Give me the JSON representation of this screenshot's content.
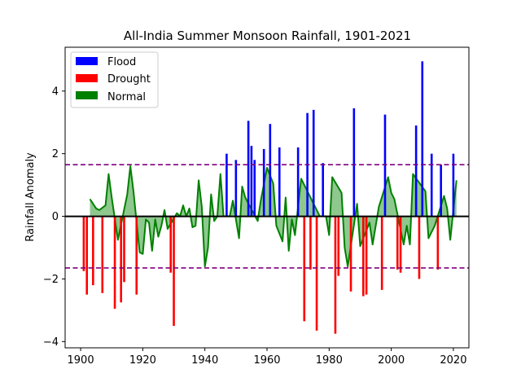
{
  "chart_data": {
    "type": "bar",
    "title": "All-India Summer Monsoon Rainfall, 1901-2021",
    "xlabel": "",
    "ylabel": "Rainfall Anomaly",
    "xlim": [
      1895,
      2025
    ],
    "ylim": [
      -4.2,
      5.4
    ],
    "xticks": [
      1900,
      1920,
      1940,
      1960,
      1980,
      2000,
      2020
    ],
    "yticks": [
      -4,
      -2,
      0,
      2,
      4
    ],
    "thresholds": [
      1.65,
      -1.65
    ],
    "legend_position": "upper-left",
    "colors": {
      "flood": "#0000ff",
      "drought": "#ff0000",
      "normal": "#008000",
      "normal_fill": "#82c282",
      "threshold": "#800080",
      "zero": "#000000"
    },
    "series": [
      {
        "name": "Flood",
        "type": "bar",
        "points": [
          [
            1947,
            2.0
          ],
          [
            1950,
            1.8
          ],
          [
            1954,
            3.05
          ],
          [
            1955,
            2.25
          ],
          [
            1956,
            1.8
          ],
          [
            1959,
            2.15
          ],
          [
            1961,
            2.95
          ],
          [
            1964,
            2.2
          ],
          [
            1970,
            2.2
          ],
          [
            1973,
            3.3
          ],
          [
            1975,
            3.4
          ],
          [
            1978,
            1.7
          ],
          [
            1988,
            3.45
          ],
          [
            1998,
            3.25
          ],
          [
            2008,
            2.9
          ],
          [
            2010,
            4.95
          ],
          [
            2013,
            2.0
          ],
          [
            2016,
            1.65
          ],
          [
            2020,
            2.0
          ]
        ]
      },
      {
        "name": "Drought",
        "type": "bar",
        "points": [
          [
            1901,
            -1.75
          ],
          [
            1902,
            -2.5
          ],
          [
            1904,
            -2.2
          ],
          [
            1907,
            -2.45
          ],
          [
            1911,
            -2.95
          ],
          [
            1913,
            -2.75
          ],
          [
            1914,
            -2.1
          ],
          [
            1918,
            -2.5
          ],
          [
            1929,
            -1.8
          ],
          [
            1930,
            -3.5
          ],
          [
            1972,
            -3.35
          ],
          [
            1974,
            -1.7
          ],
          [
            1976,
            -3.65
          ],
          [
            1982,
            -3.75
          ],
          [
            1983,
            -1.9
          ],
          [
            1987,
            -2.4
          ],
          [
            1991,
            -2.55
          ],
          [
            1992,
            -2.5
          ],
          [
            1997,
            -2.35
          ],
          [
            2002,
            -1.7
          ],
          [
            2003,
            -1.8
          ],
          [
            2009,
            -2.0
          ],
          [
            2015,
            -1.7
          ]
        ]
      },
      {
        "name": "Normal",
        "type": "area",
        "points": [
          [
            1903,
            0.55
          ],
          [
            1905,
            0.25
          ],
          [
            1906,
            0.2
          ],
          [
            1908,
            0.35
          ],
          [
            1909,
            1.35
          ],
          [
            1910,
            0.6
          ],
          [
            1912,
            -0.75
          ],
          [
            1915,
            0.7
          ],
          [
            1916,
            1.6
          ],
          [
            1917,
            0.8
          ],
          [
            1919,
            -1.15
          ],
          [
            1920,
            -1.2
          ],
          [
            1921,
            -0.1
          ],
          [
            1922,
            -0.2
          ],
          [
            1923,
            -1.1
          ],
          [
            1924,
            -0.1
          ],
          [
            1925,
            -0.65
          ],
          [
            1926,
            -0.3
          ],
          [
            1927,
            0.2
          ],
          [
            1928,
            -0.4
          ],
          [
            1931,
            0.1
          ],
          [
            1932,
            0.0
          ],
          [
            1933,
            0.35
          ],
          [
            1934,
            0.0
          ],
          [
            1935,
            0.25
          ],
          [
            1936,
            -0.35
          ],
          [
            1937,
            -0.3
          ],
          [
            1938,
            1.15
          ],
          [
            1939,
            0.3
          ],
          [
            1940,
            -1.6
          ],
          [
            1941,
            -1.0
          ],
          [
            1942,
            0.7
          ],
          [
            1943,
            -0.15
          ],
          [
            1944,
            0.0
          ],
          [
            1945,
            1.35
          ],
          [
            1946,
            0.0
          ],
          [
            1948,
            0.0
          ],
          [
            1949,
            0.5
          ],
          [
            1951,
            -0.7
          ],
          [
            1952,
            0.95
          ],
          [
            1953,
            0.6
          ],
          [
            1957,
            -0.15
          ],
          [
            1958,
            0.5
          ],
          [
            1960,
            1.55
          ],
          [
            1962,
            1.05
          ],
          [
            1963,
            -0.3
          ],
          [
            1965,
            -0.8
          ],
          [
            1966,
            0.6
          ],
          [
            1967,
            -1.1
          ],
          [
            1968,
            -0.1
          ],
          [
            1969,
            -0.6
          ],
          [
            1971,
            1.2
          ],
          [
            1977,
            0.0
          ],
          [
            1979,
            0.0
          ],
          [
            1980,
            -0.6
          ],
          [
            1981,
            1.25
          ],
          [
            1984,
            0.75
          ],
          [
            1985,
            -1.0
          ],
          [
            1986,
            -1.6
          ],
          [
            1989,
            0.4
          ],
          [
            1990,
            -0.95
          ],
          [
            1993,
            -0.2
          ],
          [
            1994,
            -0.9
          ],
          [
            1995,
            -0.3
          ],
          [
            1996,
            0.3
          ],
          [
            1999,
            1.25
          ],
          [
            2000,
            0.75
          ],
          [
            2001,
            0.55
          ],
          [
            2004,
            -0.9
          ],
          [
            2005,
            -0.3
          ],
          [
            2006,
            -0.9
          ],
          [
            2007,
            1.35
          ],
          [
            2011,
            0.8
          ],
          [
            2012,
            -0.7
          ],
          [
            2014,
            -0.3
          ],
          [
            2017,
            0.65
          ],
          [
            2018,
            0.25
          ],
          [
            2019,
            -0.75
          ],
          [
            2021,
            1.15
          ]
        ]
      }
    ]
  }
}
